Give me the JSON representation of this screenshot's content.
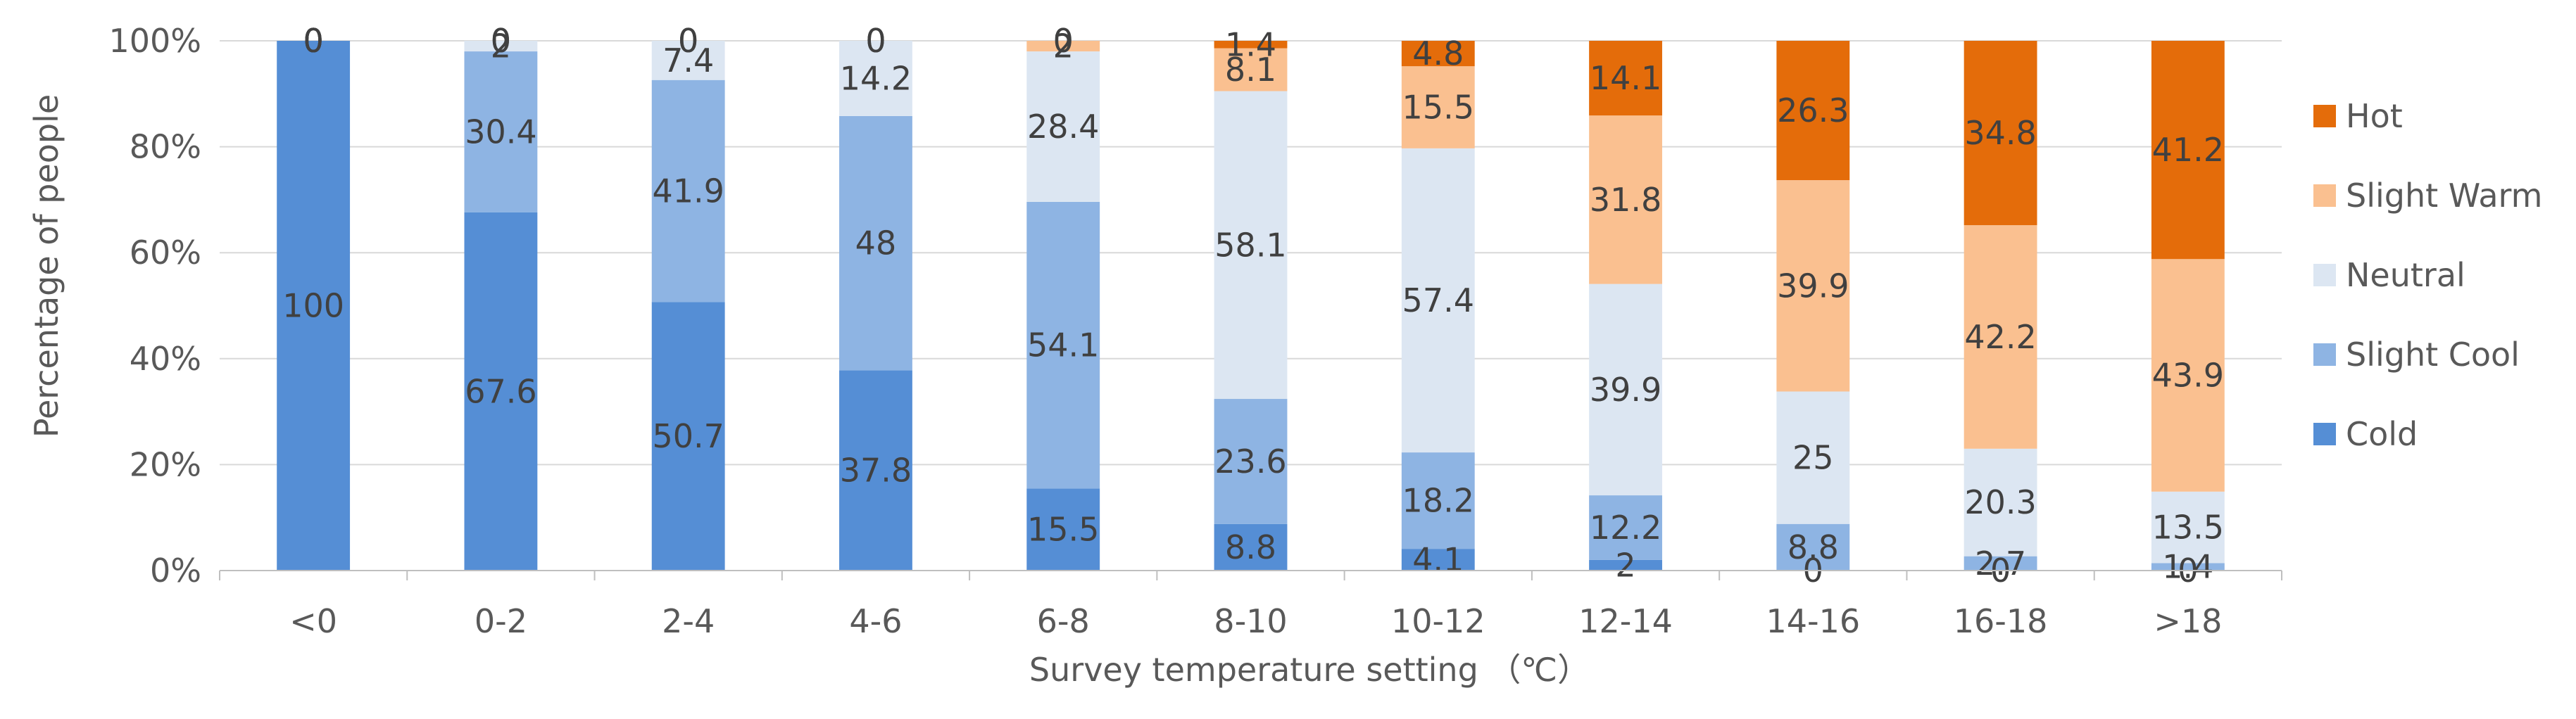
{
  "chart_data": {
    "type": "bar",
    "stacked": true,
    "normalized": true,
    "title": "",
    "xlabel": "Survey temperature setting （℃）",
    "ylabel": "Percentage of people",
    "ylim": [
      0,
      100
    ],
    "yticks": [
      "0%",
      "20%",
      "40%",
      "60%",
      "80%",
      "100%"
    ],
    "categories": [
      "<0",
      "0-2",
      "2-4",
      "4-6",
      "6-8",
      "8-10",
      "10-12",
      "12-14",
      "14-16",
      "16-18",
      ">18"
    ],
    "series": [
      {
        "name": "Cold",
        "color": "#558ed5",
        "values": [
          100,
          67.6,
          50.7,
          37.8,
          15.5,
          8.8,
          4.1,
          2,
          0,
          0,
          0
        ],
        "labels": [
          "100",
          "67.6",
          "50.7",
          "37.8",
          "15.5",
          "8.8",
          "4.1",
          "2",
          "0",
          "0",
          "0"
        ]
      },
      {
        "name": "Slight Cool",
        "color": "#8eb4e3",
        "values": [
          0,
          30.4,
          41.9,
          48,
          54.1,
          23.6,
          18.2,
          12.2,
          8.8,
          2.7,
          1.4
        ],
        "labels": [
          "0",
          "30.4",
          "41.9",
          "48",
          "54.1",
          "23.6",
          "18.2",
          "12.2",
          "8.8",
          "2.7",
          "1.4"
        ]
      },
      {
        "name": "Neutral",
        "color": "#dce6f2",
        "values": [
          0,
          2,
          7.4,
          14.2,
          28.4,
          58.1,
          57.4,
          39.9,
          25,
          20.3,
          13.5
        ],
        "labels": [
          "0",
          "2",
          "7.4",
          "14.2",
          "28.4",
          "58.1",
          "57.4",
          "39.9",
          "25",
          "20.3",
          "13.5"
        ]
      },
      {
        "name": "Slight Warm",
        "color": "#fac090",
        "values": [
          0,
          0,
          0,
          0,
          2,
          8.1,
          15.5,
          31.8,
          39.9,
          42.2,
          43.9
        ],
        "labels": [
          "0",
          "0",
          "0",
          "0",
          "2",
          "8.1",
          "15.5",
          "31.8",
          "39.9",
          "42.2",
          "43.9"
        ]
      },
      {
        "name": "Hot",
        "color": "#e46c0a",
        "values": [
          0,
          0,
          0,
          0,
          0,
          1.4,
          4.8,
          14.1,
          26.3,
          34.8,
          41.2
        ],
        "labels": [
          "0",
          "0",
          "0",
          "0",
          "0",
          "1.4",
          "4.8",
          "14.1",
          "26.3",
          "34.8",
          "41.2"
        ]
      }
    ],
    "legend": {
      "position": "right",
      "order": [
        "Hot",
        "Slight Warm",
        "Neutral",
        "Slight Cool",
        "Cold"
      ]
    },
    "grid": true
  }
}
